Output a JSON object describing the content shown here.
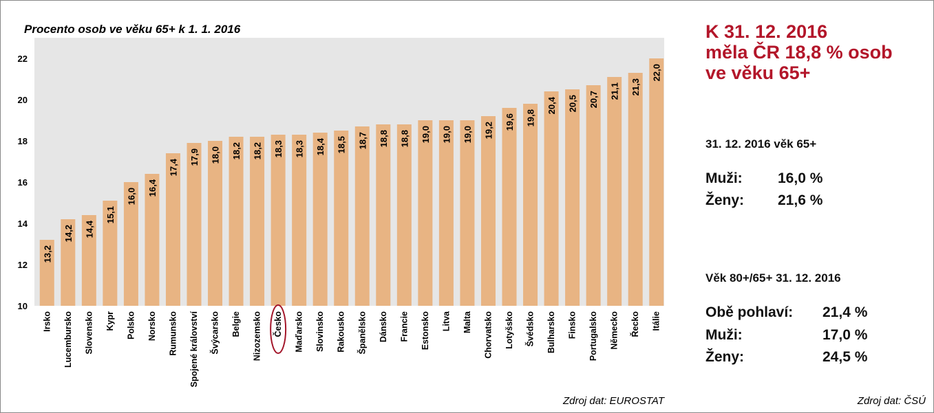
{
  "chart_data": {
    "type": "bar",
    "title": "Procento osob ve věku 65+ k 1. 1. 2016",
    "categories": [
      "Irsko",
      "Lucembursko",
      "Slovensko",
      "Kypr",
      "Polsko",
      "Norsko",
      "Rumunsko",
      "Spojené království",
      "Švýcarsko",
      "Belgie",
      "Nizozemsko",
      "Česko",
      "Maďarsko",
      "Slovinsko",
      "Rakousko",
      "Španělsko",
      "Dánsko",
      "Francie",
      "Estonsko",
      "Litva",
      "Malta",
      "Chorvatsko",
      "Lotyšsko",
      "Švédsko",
      "Bulharsko",
      "Finsko",
      "Portugalsko",
      "Německo",
      "Řecko",
      "Itálie"
    ],
    "values": [
      13.2,
      14.2,
      14.4,
      15.1,
      16.0,
      16.4,
      17.4,
      17.9,
      18.0,
      18.2,
      18.2,
      18.3,
      18.3,
      18.4,
      18.5,
      18.7,
      18.8,
      18.8,
      19.0,
      19.0,
      19.0,
      19.2,
      19.6,
      19.8,
      20.4,
      20.5,
      20.7,
      21.1,
      21.3,
      22.0
    ],
    "value_labels": [
      "13,2",
      "14,2",
      "14,4",
      "15,1",
      "16,0",
      "16,4",
      "17,4",
      "17,9",
      "18,0",
      "18,2",
      "18,2",
      "18,3",
      "18,3",
      "18,4",
      "18,5",
      "18,7",
      "18,8",
      "18,8",
      "19,0",
      "19,0",
      "19,0",
      "19,2",
      "19,6",
      "19,8",
      "20,4",
      "20,5",
      "20,7",
      "21,1",
      "21,3",
      "22,0"
    ],
    "color": "#e8b483",
    "ylim": [
      10,
      23
    ],
    "yticks": [
      10,
      12,
      14,
      16,
      18,
      20,
      22
    ],
    "source": "Zdroj dat: EUROSTAT"
  },
  "panel": {
    "headline": [
      "K 31. 12. 2016",
      "měla ČR 18,8 % osob",
      "ve věku 65+"
    ],
    "section1": {
      "title": "31. 12. 2016 věk 65+",
      "rows": [
        [
          "Muži:",
          "16,0 %"
        ],
        [
          "Ženy:",
          "21,6 %"
        ]
      ]
    },
    "section2": {
      "title": "Věk 80+/65+ 31. 12. 2016",
      "rows": [
        [
          "Obě pohlaví:",
          "21,4 %"
        ],
        [
          "Muži:",
          "17,0 %"
        ],
        [
          "Ženy:",
          "24,5 %"
        ]
      ]
    },
    "source": "Zdroj dat: ČSÚ"
  }
}
